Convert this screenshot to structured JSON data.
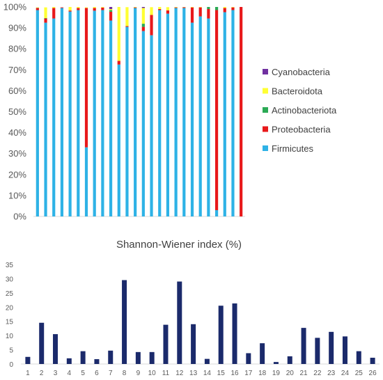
{
  "chart_data": [
    {
      "type": "bar",
      "stacked": true,
      "percent": true,
      "title": "",
      "xlabel": "",
      "ylabel": "",
      "ylim": [
        0,
        100
      ],
      "yticks": [
        "0%",
        "10%",
        "20%",
        "30%",
        "40%",
        "50%",
        "60%",
        "70%",
        "80%",
        "90%",
        "100%"
      ],
      "categories": [
        "1",
        "2",
        "3",
        "4",
        "5",
        "6",
        "7",
        "8",
        "9",
        "10",
        "11",
        "12",
        "13",
        "14",
        "15",
        "16",
        "17",
        "18",
        "19",
        "20",
        "21",
        "22",
        "23",
        "24",
        "25",
        "26"
      ],
      "grid": false,
      "legend_position": "right",
      "series": [
        {
          "name": "Firmicutes",
          "color": "#2EB2E6",
          "values": [
            98.5,
            92.5,
            94.5,
            99.5,
            97.8,
            98.5,
            33,
            98.2,
            98.5,
            93.5,
            72.5,
            90.5,
            99.5,
            88.5,
            86.5,
            98.5,
            96.8,
            99.5,
            99.5,
            92.5,
            95.5,
            94.5,
            3,
            97.5,
            98.5,
            0
          ]
        },
        {
          "name": "Proteobacteria",
          "color": "#E8191B",
          "values": [
            1.0,
            2.0,
            5.0,
            0.3,
            0.5,
            1.0,
            66.5,
            1.3,
            1.2,
            4.2,
            1.8,
            0.4,
            0.3,
            2.0,
            9.7,
            0.5,
            1.6,
            0.3,
            0.4,
            7.3,
            4.3,
            4.5,
            95.5,
            2.0,
            1.3,
            100
          ]
        },
        {
          "name": "Actinobacteriota",
          "color": "#2BAA55",
          "values": [
            0.1,
            0.2,
            0,
            0,
            0,
            0,
            0,
            0,
            0,
            0.8,
            0,
            0,
            0,
            1.5,
            0,
            0,
            0,
            0,
            0,
            0,
            0,
            1.0,
            1.5,
            0,
            0,
            0
          ]
        },
        {
          "name": "Bacteroidota",
          "color": "#FFFF33",
          "values": [
            0.2,
            5.1,
            0.5,
            0,
            1.7,
            0.5,
            0.3,
            0.5,
            0.3,
            0.5,
            25.7,
            9.0,
            0.2,
            7.5,
            3.7,
            1.0,
            1.5,
            0.2,
            0.1,
            0.2,
            0.2,
            0,
            0,
            0.5,
            0.2,
            0
          ]
        },
        {
          "name": "Cyanobacteria",
          "color": "#7030A0",
          "values": [
            0,
            0,
            0,
            0,
            0,
            0,
            0,
            0,
            0,
            1.0,
            0,
            0,
            0,
            0.5,
            0,
            0,
            0,
            0,
            0,
            0,
            0,
            0,
            0,
            0,
            0,
            0
          ]
        }
      ]
    },
    {
      "type": "bar",
      "title": "Shannon-Wiener index (%)",
      "xlabel": "",
      "ylabel": "",
      "ylim": [
        0,
        35
      ],
      "yticks": [
        "0",
        "5",
        "10",
        "15",
        "20",
        "25",
        "30",
        "35"
      ],
      "categories": [
        "1",
        "2",
        "3",
        "4",
        "5",
        "6",
        "7",
        "8",
        "9",
        "10",
        "11",
        "12",
        "13",
        "14",
        "15",
        "16",
        "17",
        "18",
        "19",
        "20",
        "21",
        "22",
        "23",
        "24",
        "25",
        "26"
      ],
      "grid": false,
      "series": [
        {
          "name": "",
          "color": "#1B2A6B",
          "values": [
            2.5,
            14.5,
            10.5,
            2.0,
            4.5,
            1.7,
            4.7,
            29.5,
            4.2,
            4.2,
            13.8,
            29.0,
            14.0,
            1.8,
            20.5,
            21.3,
            3.8,
            7.3,
            0.7,
            2.7,
            12.7,
            9.2,
            11.3,
            9.7,
            4.5,
            2.2
          ]
        }
      ]
    }
  ]
}
